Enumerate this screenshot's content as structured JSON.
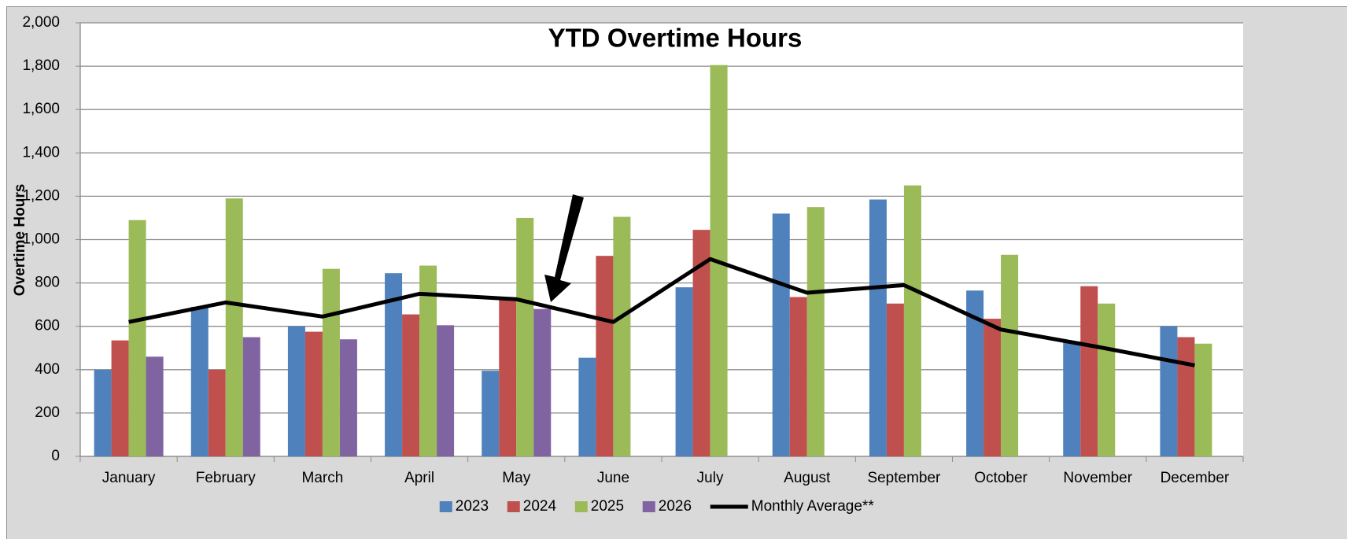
{
  "chart_data": {
    "type": "bar",
    "title": "YTD Overtime Hours",
    "y_label": "Overtime Hours",
    "categories": [
      "January",
      "February",
      "March",
      "April",
      "May",
      "June",
      "July",
      "August",
      "September",
      "October",
      "November",
      "December"
    ],
    "series": [
      {
        "name": "2023",
        "color": "#4f81bd",
        "values": [
          400,
          690,
          600,
          845,
          395,
          455,
          780,
          1120,
          1185,
          765,
          530,
          600
        ]
      },
      {
        "name": "2024",
        "color": "#c0504d",
        "values": [
          535,
          400,
          575,
          655,
          725,
          925,
          1045,
          735,
          705,
          635,
          785,
          550
        ]
      },
      {
        "name": "2025",
        "color": "#9bbb59",
        "values": [
          1090,
          1190,
          865,
          880,
          1100,
          1105,
          1805,
          1150,
          1250,
          930,
          705,
          520
        ]
      },
      {
        "name": "2026",
        "color": "#8064a2",
        "values": [
          460,
          550,
          540,
          605,
          680,
          null,
          null,
          null,
          null,
          null,
          null,
          null
        ]
      },
      {
        "name": "Monthly Average**",
        "type": "line",
        "color": "#000000",
        "values": [
          620,
          710,
          645,
          750,
          725,
          620,
          910,
          755,
          790,
          585,
          505,
          420
        ]
      }
    ],
    "ylim": [
      0,
      2000
    ],
    "yticks": [
      0,
      200,
      400,
      600,
      800,
      {
        "value": 1000,
        "label": "1,000"
      },
      {
        "value": 1200,
        "label": "1,200"
      },
      {
        "value": 1400,
        "label": "1,400"
      },
      {
        "value": 1600,
        "label": "1,600"
      },
      {
        "value": 1800,
        "label": "1,800"
      },
      {
        "value": 2000,
        "label": "2,000"
      }
    ],
    "grid": true,
    "legend": "bottom"
  }
}
